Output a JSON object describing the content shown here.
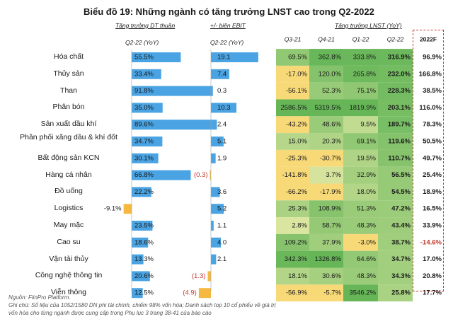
{
  "title": "Biểu đồ 19: Những ngành có tăng trưởng LNST cao trong Q2-2022",
  "chart_data": {
    "type": "table",
    "title": "Biểu đồ 19: Những ngành có tăng trưởng LNST cao trong Q2-2022",
    "rows": [
      "Hóa chất",
      "Thủy sản",
      "Than",
      "Phân bón",
      "Sản xuất dầu khí",
      "Phân phối xăng dầu & khí đốt",
      "Bất động sản KCN",
      "Hàng cá nhân",
      "Đồ uống",
      "Logistics",
      "May mặc",
      "Cao su",
      "Vận tải thủy",
      "Công nghệ thông tin",
      "Viễn thông"
    ],
    "revenue_growth": {
      "header": "Tăng trưởng DT thuần",
      "subheader": "Q2-22 (YoY)",
      "values": [
        55.5,
        33.4,
        91.8,
        35.0,
        89.6,
        34.7,
        30.1,
        66.8,
        22.2,
        -9.1,
        23.5,
        18.6,
        13.3,
        20.6,
        12.5
      ],
      "labels": [
        "55.5%",
        "33.4%",
        "91.8%",
        "35.0%",
        "89.6%",
        "34.7%",
        "30.1%",
        "66.8%",
        "22.2%",
        "-9.1%",
        "23.5%",
        "18.6%",
        "13.3%",
        "20.6%",
        "12.5%"
      ]
    },
    "ebit_margin_change": {
      "header": "+/- biên EBIT",
      "subheader": "Q2-22 (YoY)",
      "values": [
        19.1,
        7.4,
        0.3,
        10.3,
        2.4,
        5.1,
        1.9,
        -0.3,
        3.6,
        5.2,
        1.1,
        4.0,
        2.1,
        -1.3,
        -4.9
      ],
      "labels": [
        "19.1",
        "7.4",
        "0.3",
        "10.3",
        "2.4",
        "5.1",
        "1.9",
        "(0.3)",
        "3.6",
        "5.2",
        "1.1",
        "4.0",
        "2.1",
        "(1.3)",
        "(4.9)"
      ]
    },
    "profit_growth": {
      "header": "Tăng trưởng LNST (YoY)",
      "columns": [
        "Q3-21",
        "Q4-21",
        "Q1-22",
        "Q2-22",
        "2022F"
      ],
      "values": [
        [
          69.5,
          362.8,
          333.8,
          316.9,
          96.9
        ],
        [
          -17.0,
          120.0,
          265.8,
          232.0,
          166.8
        ],
        [
          -56.1,
          52.3,
          75.1,
          228.3,
          38.5
        ],
        [
          2586.5,
          5319.5,
          1819.9,
          203.1,
          116.0
        ],
        [
          -43.2,
          48.6,
          9.5,
          189.7,
          78.3
        ],
        [
          15.0,
          20.3,
          69.1,
          119.6,
          50.5
        ],
        [
          -25.3,
          -30.7,
          19.5,
          110.7,
          49.7
        ],
        [
          -141.8,
          3.7,
          32.9,
          56.5,
          25.4
        ],
        [
          -66.2,
          -17.9,
          18.0,
          54.5,
          18.9
        ],
        [
          25.3,
          108.9,
          51.3,
          47.2,
          16.5
        ],
        [
          2.8,
          58.7,
          48.3,
          43.4,
          33.9
        ],
        [
          109.2,
          37.9,
          -3.0,
          38.7,
          -14.6
        ],
        [
          342.3,
          1326.8,
          64.6,
          34.7,
          17.0
        ],
        [
          18.1,
          30.6,
          48.3,
          34.3,
          20.8
        ],
        [
          -56.9,
          -5.7,
          3546.2,
          25.8,
          17.7
        ]
      ],
      "labels": [
        [
          "69.5%",
          "362.8%",
          "333.8%",
          "316.9%",
          "96.9%"
        ],
        [
          "-17.0%",
          "120.0%",
          "265.8%",
          "232.0%",
          "166.8%"
        ],
        [
          "-56.1%",
          "52.3%",
          "75.1%",
          "228.3%",
          "38.5%"
        ],
        [
          "2586.5%",
          "5319.5%",
          "1819.9%",
          "203.1%",
          "116.0%"
        ],
        [
          "-43.2%",
          "48.6%",
          "9.5%",
          "189.7%",
          "78.3%"
        ],
        [
          "15.0%",
          "20.3%",
          "69.1%",
          "119.6%",
          "50.5%"
        ],
        [
          "-25.3%",
          "-30.7%",
          "19.5%",
          "110.7%",
          "49.7%"
        ],
        [
          "-141.8%",
          "3.7%",
          "32.9%",
          "56.5%",
          "25.4%"
        ],
        [
          "-66.2%",
          "-17.9%",
          "18.0%",
          "54.5%",
          "18.9%"
        ],
        [
          "25.3%",
          "108.9%",
          "51.3%",
          "47.2%",
          "16.5%"
        ],
        [
          "2.8%",
          "58.7%",
          "48.3%",
          "43.4%",
          "33.9%"
        ],
        [
          "109.2%",
          "37.9%",
          "-3.0%",
          "38.7%",
          "-14.6%"
        ],
        [
          "342.3%",
          "1326.8%",
          "64.6%",
          "34.7%",
          "17.0%"
        ],
        [
          "18.1%",
          "30.6%",
          "48.3%",
          "34.3%",
          "20.8%"
        ],
        [
          "-56.9%",
          "-5.7%",
          "3546.2%",
          "25.8%",
          "17.7%"
        ]
      ]
    }
  },
  "notes": {
    "source": "Nguồn: FiinPro Platform.",
    "note1": "Ghi chú: Số liệu của 1052/1580 DN phi tài chính, chiếm 98% vốn hóa; Danh sách top 10 cổ phiếu về giá trị",
    "note2": "vốn hóa cho từng ngành được cung cấp trong Phụ lục 3 trang 38-41 của báo cáo"
  },
  "colors": {
    "bar_positive": "#4aa3e2",
    "bar_negative": "#f5b942",
    "heat_negative": "#f8d978",
    "heat_mid": "#fbf3b5",
    "heat_positive": "#66b658",
    "negative_text": "#c0392b",
    "forecast_border": "#c0392b"
  }
}
